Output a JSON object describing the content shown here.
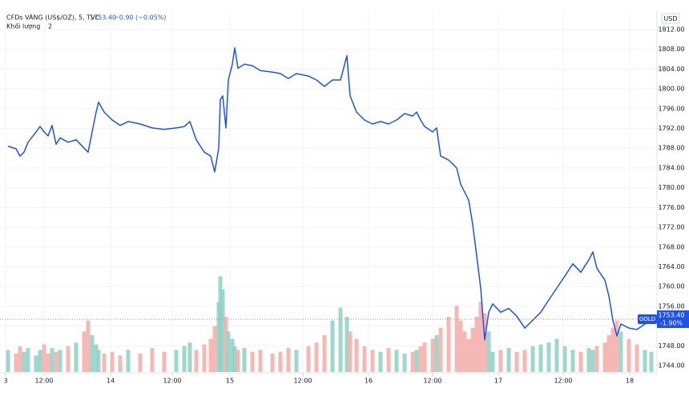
{
  "chart_data": {
    "type": "line",
    "title": "CFDs VÀNG (US$/OZ), 5, TVC",
    "last_label": "1753.40",
    "change_label": "−0.90 (−0.05%)",
    "tag_change_label": "-1.90%",
    "currency": "USD",
    "volume_length": "2",
    "x": [
      5,
      15,
      20,
      25,
      30,
      40,
      45,
      50,
      55,
      60,
      65,
      70,
      80,
      90,
      100,
      105,
      110,
      115,
      118,
      125,
      135,
      145,
      155,
      170,
      185,
      200,
      215,
      225,
      232,
      240,
      250,
      258,
      263,
      268,
      270,
      273,
      277,
      280,
      285,
      288,
      292,
      300,
      310,
      320,
      335,
      345,
      355,
      365,
      380,
      390,
      400,
      410,
      420,
      428,
      432,
      440,
      450,
      460,
      470,
      480,
      490,
      500,
      510,
      515,
      520,
      525,
      535,
      540,
      545,
      555,
      565,
      570,
      575,
      580,
      585,
      590,
      595,
      600,
      605,
      610,
      620,
      630,
      640,
      650,
      660,
      670,
      680,
      690,
      700,
      710,
      720,
      730,
      735,
      740,
      750,
      755,
      760,
      765,
      770,
      780,
      790,
      800,
      808
    ],
    "series": [
      {
        "name": "GOLD",
        "color": "#1e53e5",
        "values": [
          1788.4,
          1787.9,
          1786.4,
          1787.2,
          1789.2,
          1791.3,
          1792.4,
          1791.3,
          1790.5,
          1792.6,
          1788.8,
          1790.1,
          1789.2,
          1789.7,
          1788.0,
          1787.2,
          1791.3,
          1795.3,
          1797.3,
          1795.3,
          1793.7,
          1792.6,
          1793.4,
          1792.9,
          1792.1,
          1791.8,
          1792.1,
          1792.4,
          1793.4,
          1789.7,
          1787.2,
          1786.4,
          1783.2,
          1788.0,
          1797.8,
          1798.6,
          1792.1,
          1801.8,
          1805.0,
          1808.3,
          1804.2,
          1805.0,
          1804.7,
          1803.7,
          1803.4,
          1803.1,
          1802.1,
          1803.1,
          1802.6,
          1801.8,
          1800.5,
          1801.8,
          1801.8,
          1806.7,
          1798.6,
          1795.3,
          1793.7,
          1792.9,
          1793.4,
          1792.9,
          1793.7,
          1795.0,
          1794.5,
          1795.3,
          1793.7,
          1792.4,
          1791.3,
          1792.1,
          1786.4,
          1785.6,
          1784.0,
          1780.7,
          1779.1,
          1777.5,
          1772.6,
          1766.2,
          1759.7,
          1749.2,
          1754.8,
          1756.5,
          1754.8,
          1755.6,
          1754.0,
          1751.6,
          1753.2,
          1754.8,
          1757.3,
          1759.7,
          1762.1,
          1764.6,
          1762.9,
          1765.4,
          1767.0,
          1763.7,
          1761.3,
          1758.1,
          1753.2,
          1750.0,
          1752.4,
          1751.6,
          1751.3,
          1752.4,
          1753.4
        ]
      },
      {
        "name": "Khối lượng",
        "axis": "y2",
        "up_color": "#8fd0c4",
        "down_color": "#f5aca8",
        "values": [
          12,
          10,
          14,
          11,
          13,
          9,
          12,
          15,
          10,
          13,
          11,
          12,
          14,
          16,
          22,
          28,
          20,
          15,
          12,
          10,
          11,
          9,
          12,
          10,
          13,
          11,
          12,
          14,
          16,
          12,
          15,
          18,
          25,
          38,
          52,
          45,
          30,
          22,
          18,
          14,
          12,
          13,
          11,
          12,
          10,
          11,
          13,
          12,
          14,
          16,
          20,
          28,
          35,
          30,
          22,
          18,
          14,
          12,
          11,
          13,
          12,
          10,
          11,
          12,
          14,
          16,
          18,
          20,
          24,
          30,
          36,
          28,
          22,
          18,
          24,
          30,
          38,
          32,
          22,
          11,
          12,
          13,
          11,
          12,
          14,
          15,
          16,
          18,
          14,
          12,
          11,
          13,
          12,
          14,
          16,
          20,
          24,
          28,
          22,
          18,
          15,
          12,
          11
        ]
      }
    ],
    "xlim": [
      0,
      815
    ],
    "xticks": [
      {
        "value": 2,
        "label": "3"
      },
      {
        "value": 50,
        "label": "12:00"
      },
      {
        "value": 133,
        "label": "14"
      },
      {
        "value": 210,
        "label": "12:00"
      },
      {
        "value": 282,
        "label": "15"
      },
      {
        "value": 373,
        "label": "12:00"
      },
      {
        "value": 455,
        "label": "16"
      },
      {
        "value": 535,
        "label": "12:00"
      },
      {
        "value": 617,
        "label": "17"
      },
      {
        "value": 698,
        "label": "12:00"
      },
      {
        "value": 781,
        "label": "18"
      }
    ],
    "ylim": [
      1744,
      1812
    ],
    "yticks": [
      {
        "value": 1744,
        "label": "1744.00"
      },
      {
        "value": 1748,
        "label": "1748.00"
      },
      {
        "value": 1752,
        "label": "1752.00"
      },
      {
        "value": 1756,
        "label": "1756.00"
      },
      {
        "value": 1760,
        "label": "1760.00"
      },
      {
        "value": 1764,
        "label": "1764.00"
      },
      {
        "value": 1768,
        "label": "1768.00"
      },
      {
        "value": 1772,
        "label": "1772.00"
      },
      {
        "value": 1776,
        "label": "1776.00"
      },
      {
        "value": 1780,
        "label": "1780.00"
      },
      {
        "value": 1784,
        "label": "1784.00"
      },
      {
        "value": 1788,
        "label": "1788.00"
      },
      {
        "value": 1792,
        "label": "1792.00"
      },
      {
        "value": 1796,
        "label": "1796.00"
      },
      {
        "value": 1800,
        "label": "1800.00"
      },
      {
        "value": 1804,
        "label": "1804.00"
      },
      {
        "value": 1808,
        "label": "1808.00"
      },
      {
        "value": 1812,
        "label": "1812.00"
      }
    ],
    "y2lim": [
      0,
      100
    ],
    "grid": true
  }
}
